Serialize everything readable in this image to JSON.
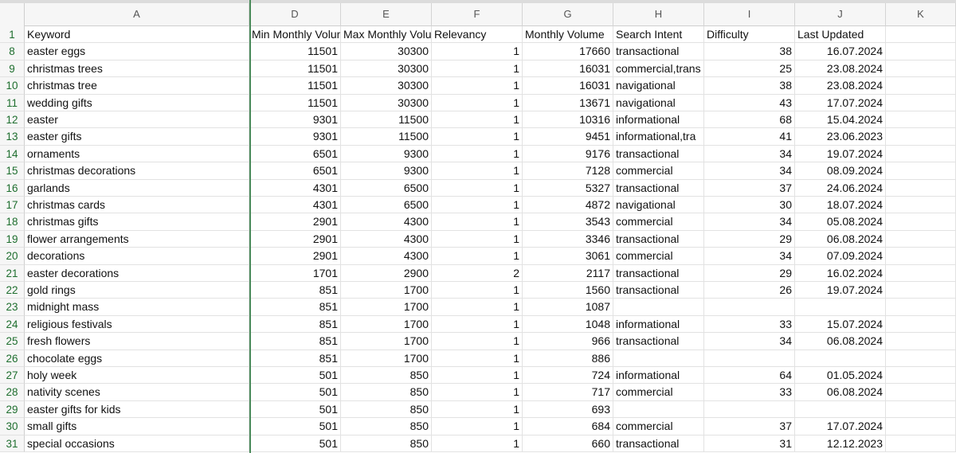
{
  "column_letters": [
    "A",
    "D",
    "E",
    "F",
    "G",
    "H",
    "I",
    "J",
    "K"
  ],
  "header_row": {
    "num": "1",
    "keyword": "Keyword",
    "min": "Min Monthly Volume",
    "max": "Max Monthly Volume",
    "relevancy": "Relevancy",
    "volume": "Monthly Volume",
    "intent": "Search Intent",
    "difficulty": "Difficulty",
    "updated": "Last Updated"
  },
  "rows": [
    {
      "num": "8",
      "keyword": "easter eggs",
      "min": "11501",
      "max": "30300",
      "relevancy": "1",
      "volume": "17660",
      "intent": "transactional",
      "difficulty": "38",
      "updated": "16.07.2024"
    },
    {
      "num": "9",
      "keyword": "christmas trees",
      "min": "11501",
      "max": "30300",
      "relevancy": "1",
      "volume": "16031",
      "intent": "commercial,trans",
      "difficulty": "25",
      "updated": "23.08.2024"
    },
    {
      "num": "10",
      "keyword": "christmas tree",
      "min": "11501",
      "max": "30300",
      "relevancy": "1",
      "volume": "16031",
      "intent": "navigational",
      "difficulty": "38",
      "updated": "23.08.2024"
    },
    {
      "num": "11",
      "keyword": "wedding gifts",
      "min": "11501",
      "max": "30300",
      "relevancy": "1",
      "volume": "13671",
      "intent": "navigational",
      "difficulty": "43",
      "updated": "17.07.2024"
    },
    {
      "num": "12",
      "keyword": "easter",
      "min": "9301",
      "max": "11500",
      "relevancy": "1",
      "volume": "10316",
      "intent": "informational",
      "difficulty": "68",
      "updated": "15.04.2024"
    },
    {
      "num": "13",
      "keyword": "easter gifts",
      "min": "9301",
      "max": "11500",
      "relevancy": "1",
      "volume": "9451",
      "intent": "informational,tra",
      "difficulty": "41",
      "updated": "23.06.2023"
    },
    {
      "num": "14",
      "keyword": "ornaments",
      "min": "6501",
      "max": "9300",
      "relevancy": "1",
      "volume": "9176",
      "intent": "transactional",
      "difficulty": "34",
      "updated": "19.07.2024"
    },
    {
      "num": "15",
      "keyword": "christmas decorations",
      "min": "6501",
      "max": "9300",
      "relevancy": "1",
      "volume": "7128",
      "intent": "commercial",
      "difficulty": "34",
      "updated": "08.09.2024"
    },
    {
      "num": "16",
      "keyword": "garlands",
      "min": "4301",
      "max": "6500",
      "relevancy": "1",
      "volume": "5327",
      "intent": "transactional",
      "difficulty": "37",
      "updated": "24.06.2024"
    },
    {
      "num": "17",
      "keyword": "christmas cards",
      "min": "4301",
      "max": "6500",
      "relevancy": "1",
      "volume": "4872",
      "intent": "navigational",
      "difficulty": "30",
      "updated": "18.07.2024"
    },
    {
      "num": "18",
      "keyword": "christmas gifts",
      "min": "2901",
      "max": "4300",
      "relevancy": "1",
      "volume": "3543",
      "intent": "commercial",
      "difficulty": "34",
      "updated": "05.08.2024"
    },
    {
      "num": "19",
      "keyword": "flower arrangements",
      "min": "2901",
      "max": "4300",
      "relevancy": "1",
      "volume": "3346",
      "intent": "transactional",
      "difficulty": "29",
      "updated": "06.08.2024"
    },
    {
      "num": "20",
      "keyword": "decorations",
      "min": "2901",
      "max": "4300",
      "relevancy": "1",
      "volume": "3061",
      "intent": "commercial",
      "difficulty": "34",
      "updated": "07.09.2024"
    },
    {
      "num": "21",
      "keyword": "easter decorations",
      "min": "1701",
      "max": "2900",
      "relevancy": "2",
      "volume": "2117",
      "intent": "transactional",
      "difficulty": "29",
      "updated": "16.02.2024"
    },
    {
      "num": "22",
      "keyword": "gold rings",
      "min": "851",
      "max": "1700",
      "relevancy": "1",
      "volume": "1560",
      "intent": "transactional",
      "difficulty": "26",
      "updated": "19.07.2024"
    },
    {
      "num": "23",
      "keyword": "midnight mass",
      "min": "851",
      "max": "1700",
      "relevancy": "1",
      "volume": "1087",
      "intent": "",
      "difficulty": "",
      "updated": ""
    },
    {
      "num": "24",
      "keyword": "religious festivals",
      "min": "851",
      "max": "1700",
      "relevancy": "1",
      "volume": "1048",
      "intent": "informational",
      "difficulty": "33",
      "updated": "15.07.2024"
    },
    {
      "num": "25",
      "keyword": "fresh flowers",
      "min": "851",
      "max": "1700",
      "relevancy": "1",
      "volume": "966",
      "intent": "transactional",
      "difficulty": "34",
      "updated": "06.08.2024"
    },
    {
      "num": "26",
      "keyword": "chocolate eggs",
      "min": "851",
      "max": "1700",
      "relevancy": "1",
      "volume": "886",
      "intent": "",
      "difficulty": "",
      "updated": ""
    },
    {
      "num": "27",
      "keyword": "holy week",
      "min": "501",
      "max": "850",
      "relevancy": "1",
      "volume": "724",
      "intent": "informational",
      "difficulty": "64",
      "updated": "01.05.2024"
    },
    {
      "num": "28",
      "keyword": "nativity scenes",
      "min": "501",
      "max": "850",
      "relevancy": "1",
      "volume": "717",
      "intent": "commercial",
      "difficulty": "33",
      "updated": "06.08.2024"
    },
    {
      "num": "29",
      "keyword": "easter gifts for kids",
      "min": "501",
      "max": "850",
      "relevancy": "1",
      "volume": "693",
      "intent": "",
      "difficulty": "",
      "updated": ""
    },
    {
      "num": "30",
      "keyword": "small gifts",
      "min": "501",
      "max": "850",
      "relevancy": "1",
      "volume": "684",
      "intent": "commercial",
      "difficulty": "37",
      "updated": "17.07.2024"
    },
    {
      "num": "31",
      "keyword": "special occasions",
      "min": "501",
      "max": "850",
      "relevancy": "1",
      "volume": "660",
      "intent": "transactional",
      "difficulty": "31",
      "updated": "12.12.2023"
    }
  ]
}
